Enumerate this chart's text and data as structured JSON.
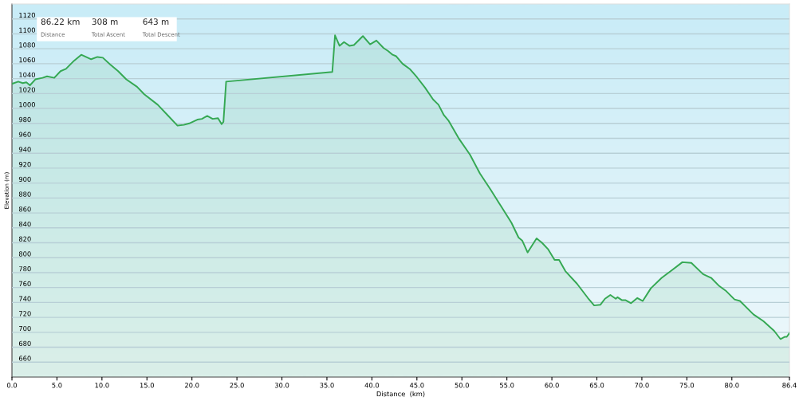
{
  "chart_data": {
    "type": "area",
    "xlabel": "Distance  (km)",
    "ylabel": "Elevation (m)",
    "annotations": [
      "86.22 km",
      "Distance",
      "308 m",
      "Total Ascent",
      "643 m",
      "Total Descent"
    ],
    "x": [
      0,
      0.7,
      1.2,
      1.6,
      2.0,
      2.6,
      3.4,
      3.9,
      4.7,
      5.4,
      6.0,
      6.9,
      7.7,
      8.8,
      9.5,
      10.1,
      10.9,
      11.8,
      12.7,
      13.9,
      14.7,
      16.2,
      17.3,
      18.4,
      19.1,
      19.7,
      20.6,
      21.1,
      21.7,
      22.3,
      22.9,
      23.3,
      23.5,
      23.8,
      35.6,
      35.9,
      36.4,
      36.9,
      37.5,
      38.0,
      39.0,
      39.8,
      40.5,
      41.3,
      41.8,
      42.3,
      42.7,
      43.4,
      44.2,
      45.0,
      45.9,
      46.8,
      47.4,
      48.0,
      48.5,
      49.7,
      50.9,
      52.0,
      53.2,
      54.4,
      55.5,
      56.3,
      56.7,
      57.3,
      58.3,
      58.9,
      59.6,
      60.3,
      60.8,
      61.5,
      62.8,
      64.0,
      64.7,
      65.4,
      65.9,
      66.5,
      67.1,
      67.3,
      67.8,
      68.2,
      68.8,
      69.5,
      70.1,
      71.0,
      72.2,
      73.3,
      74.5,
      75.5,
      76.8,
      77.7,
      78.6,
      79.3,
      80.3,
      80.9,
      82.4,
      83.5,
      84.7,
      85.4,
      85.9,
      86.1,
      86.4
    ],
    "series": [
      {
        "color": "#35a853",
        "values": [
          1033,
          1036,
          1034,
          1035,
          1031,
          1039,
          1041,
          1043,
          1041,
          1050,
          1053,
          1064,
          1072,
          1066,
          1069,
          1068,
          1059,
          1050,
          1039,
          1029,
          1019,
          1005,
          991,
          977,
          978,
          980,
          985,
          986,
          990,
          986,
          987,
          979,
          982,
          1036,
          1049,
          1098,
          1084,
          1089,
          1084,
          1085,
          1097,
          1086,
          1091,
          1081,
          1077,
          1072,
          1070,
          1060,
          1053,
          1042,
          1028,
          1012,
          1005,
          991,
          984,
          959,
          938,
          913,
          891,
          868,
          847,
          827,
          823,
          807,
          826,
          820,
          811,
          797,
          797,
          782,
          765,
          746,
          736,
          737,
          745,
          750,
          745,
          747,
          743,
          743,
          739,
          746,
          742,
          759,
          773,
          783,
          794,
          793,
          778,
          773,
          762,
          756,
          744,
          742,
          724,
          715,
          702,
          691,
          694,
          694,
          699
        ]
      }
    ],
    "xlim": [
      0,
      86.4
    ],
    "ylim": [
      640,
      1140
    ],
    "xticks": [
      {
        "value": 0,
        "label": "0.0"
      },
      {
        "value": 5,
        "label": "5.0"
      },
      {
        "value": 10,
        "label": "10.0"
      },
      {
        "value": 15,
        "label": "15.0"
      },
      {
        "value": 20,
        "label": "20.0"
      },
      {
        "value": 25,
        "label": "25.0"
      },
      {
        "value": 30,
        "label": "30.0"
      },
      {
        "value": 35,
        "label": "35.0"
      },
      {
        "value": 40,
        "label": "40.0"
      },
      {
        "value": 45,
        "label": "45.0"
      },
      {
        "value": 50,
        "label": "50.0"
      },
      {
        "value": 55,
        "label": "55.0"
      },
      {
        "value": 60,
        "label": "60.0"
      },
      {
        "value": 65,
        "label": "65.0"
      },
      {
        "value": 70,
        "label": "70.0"
      },
      {
        "value": 75,
        "label": "75.0"
      },
      {
        "value": 80,
        "label": "80.0"
      },
      86.4
    ],
    "yticks": [
      660,
      680,
      700,
      720,
      740,
      760,
      780,
      800,
      820,
      840,
      860,
      880,
      900,
      920,
      940,
      960,
      980,
      1000,
      1020,
      1040,
      1060,
      1080,
      1100,
      1120
    ],
    "grid": "y",
    "legend": false
  }
}
